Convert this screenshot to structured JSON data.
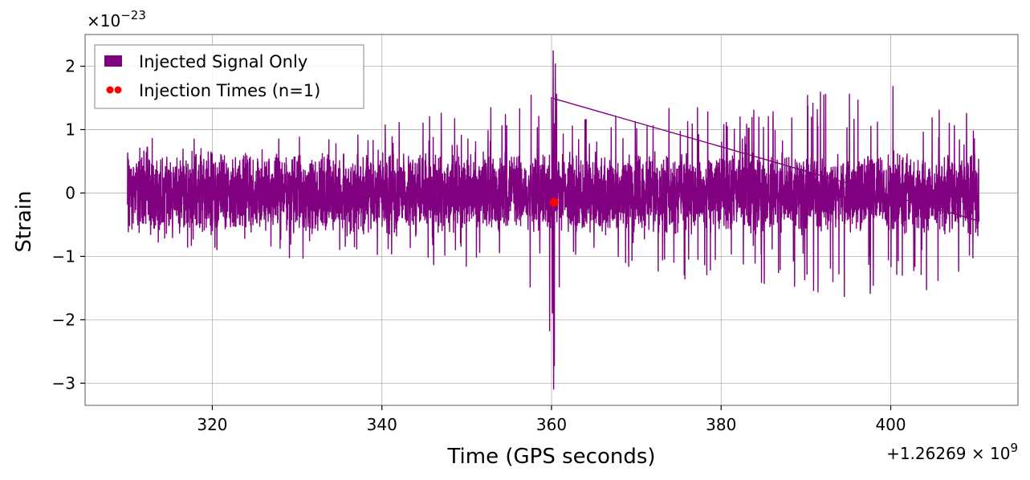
{
  "chart_data": {
    "type": "line",
    "title": "",
    "xlabel": "Time (GPS seconds)",
    "ylabel": "Strain",
    "x_offset_label": "+1.26269 × 10^9",
    "y_scale_label": "×10^−23",
    "xlim": [
      305,
      415
    ],
    "ylim": [
      -3.35,
      2.5
    ],
    "x_ticks": [
      320,
      340,
      360,
      380,
      400
    ],
    "x_tick_labels": [
      "320",
      "340",
      "360",
      "380",
      "400"
    ],
    "y_ticks": [
      -3,
      -2,
      -1,
      0,
      1,
      2
    ],
    "y_tick_labels": [
      "−3",
      "−2",
      "−1",
      "0",
      "1",
      "2"
    ],
    "grid": true,
    "legend": {
      "placement": "top-left",
      "entries": [
        {
          "label": "Injected Signal Only",
          "marker": "patch",
          "color": "#800080"
        },
        {
          "label": "Injection Times (n=1)",
          "marker": "dots",
          "color": "#ff0000"
        }
      ]
    },
    "series": [
      {
        "name": "Injected Signal Only",
        "color": "#800080",
        "x_range": [
          310,
          410.4
        ],
        "typical_band": [
          -0.5,
          0.5
        ],
        "envelope": [
          {
            "x": 310,
            "max": 0.75,
            "min": -0.6
          },
          {
            "x": 315,
            "max": 1.0,
            "min": -1.0
          },
          {
            "x": 320,
            "max": 0.75,
            "min": -0.9
          },
          {
            "x": 325,
            "max": 0.8,
            "min": -0.9
          },
          {
            "x": 330,
            "max": 1.05,
            "min": -1.1
          },
          {
            "x": 335,
            "max": 1.0,
            "min": -0.95
          },
          {
            "x": 340,
            "max": 1.15,
            "min": -1.05
          },
          {
            "x": 345,
            "max": 1.4,
            "min": -1.25
          },
          {
            "x": 350,
            "max": 1.3,
            "min": -1.2
          },
          {
            "x": 355,
            "max": 1.6,
            "min": -1.5
          },
          {
            "x": 359,
            "max": 1.6,
            "min": -1.55
          },
          {
            "x": 360.2,
            "max": 2.25,
            "min": -3.1
          },
          {
            "x": 362,
            "max": 1.15,
            "min": -1.05
          },
          {
            "x": 365,
            "max": 1.35,
            "min": -1.2
          },
          {
            "x": 370,
            "max": 1.4,
            "min": -1.2
          },
          {
            "x": 375,
            "max": 1.6,
            "min": -1.8
          },
          {
            "x": 380,
            "max": 1.2,
            "min": -1.1
          },
          {
            "x": 385,
            "max": 1.35,
            "min": -1.45
          },
          {
            "x": 390,
            "max": 1.65,
            "min": -1.6
          },
          {
            "x": 395,
            "max": 1.7,
            "min": -1.7
          },
          {
            "x": 400,
            "max": 1.8,
            "min": -1.5
          },
          {
            "x": 405,
            "max": 1.55,
            "min": -1.6
          },
          {
            "x": 410.4,
            "max": 1.3,
            "min": -1.1
          }
        ]
      },
      {
        "name": "Injection Times (n=1)",
        "color": "#ff0000",
        "points": [
          {
            "x": 360.3,
            "y": -0.15
          }
        ]
      }
    ]
  }
}
